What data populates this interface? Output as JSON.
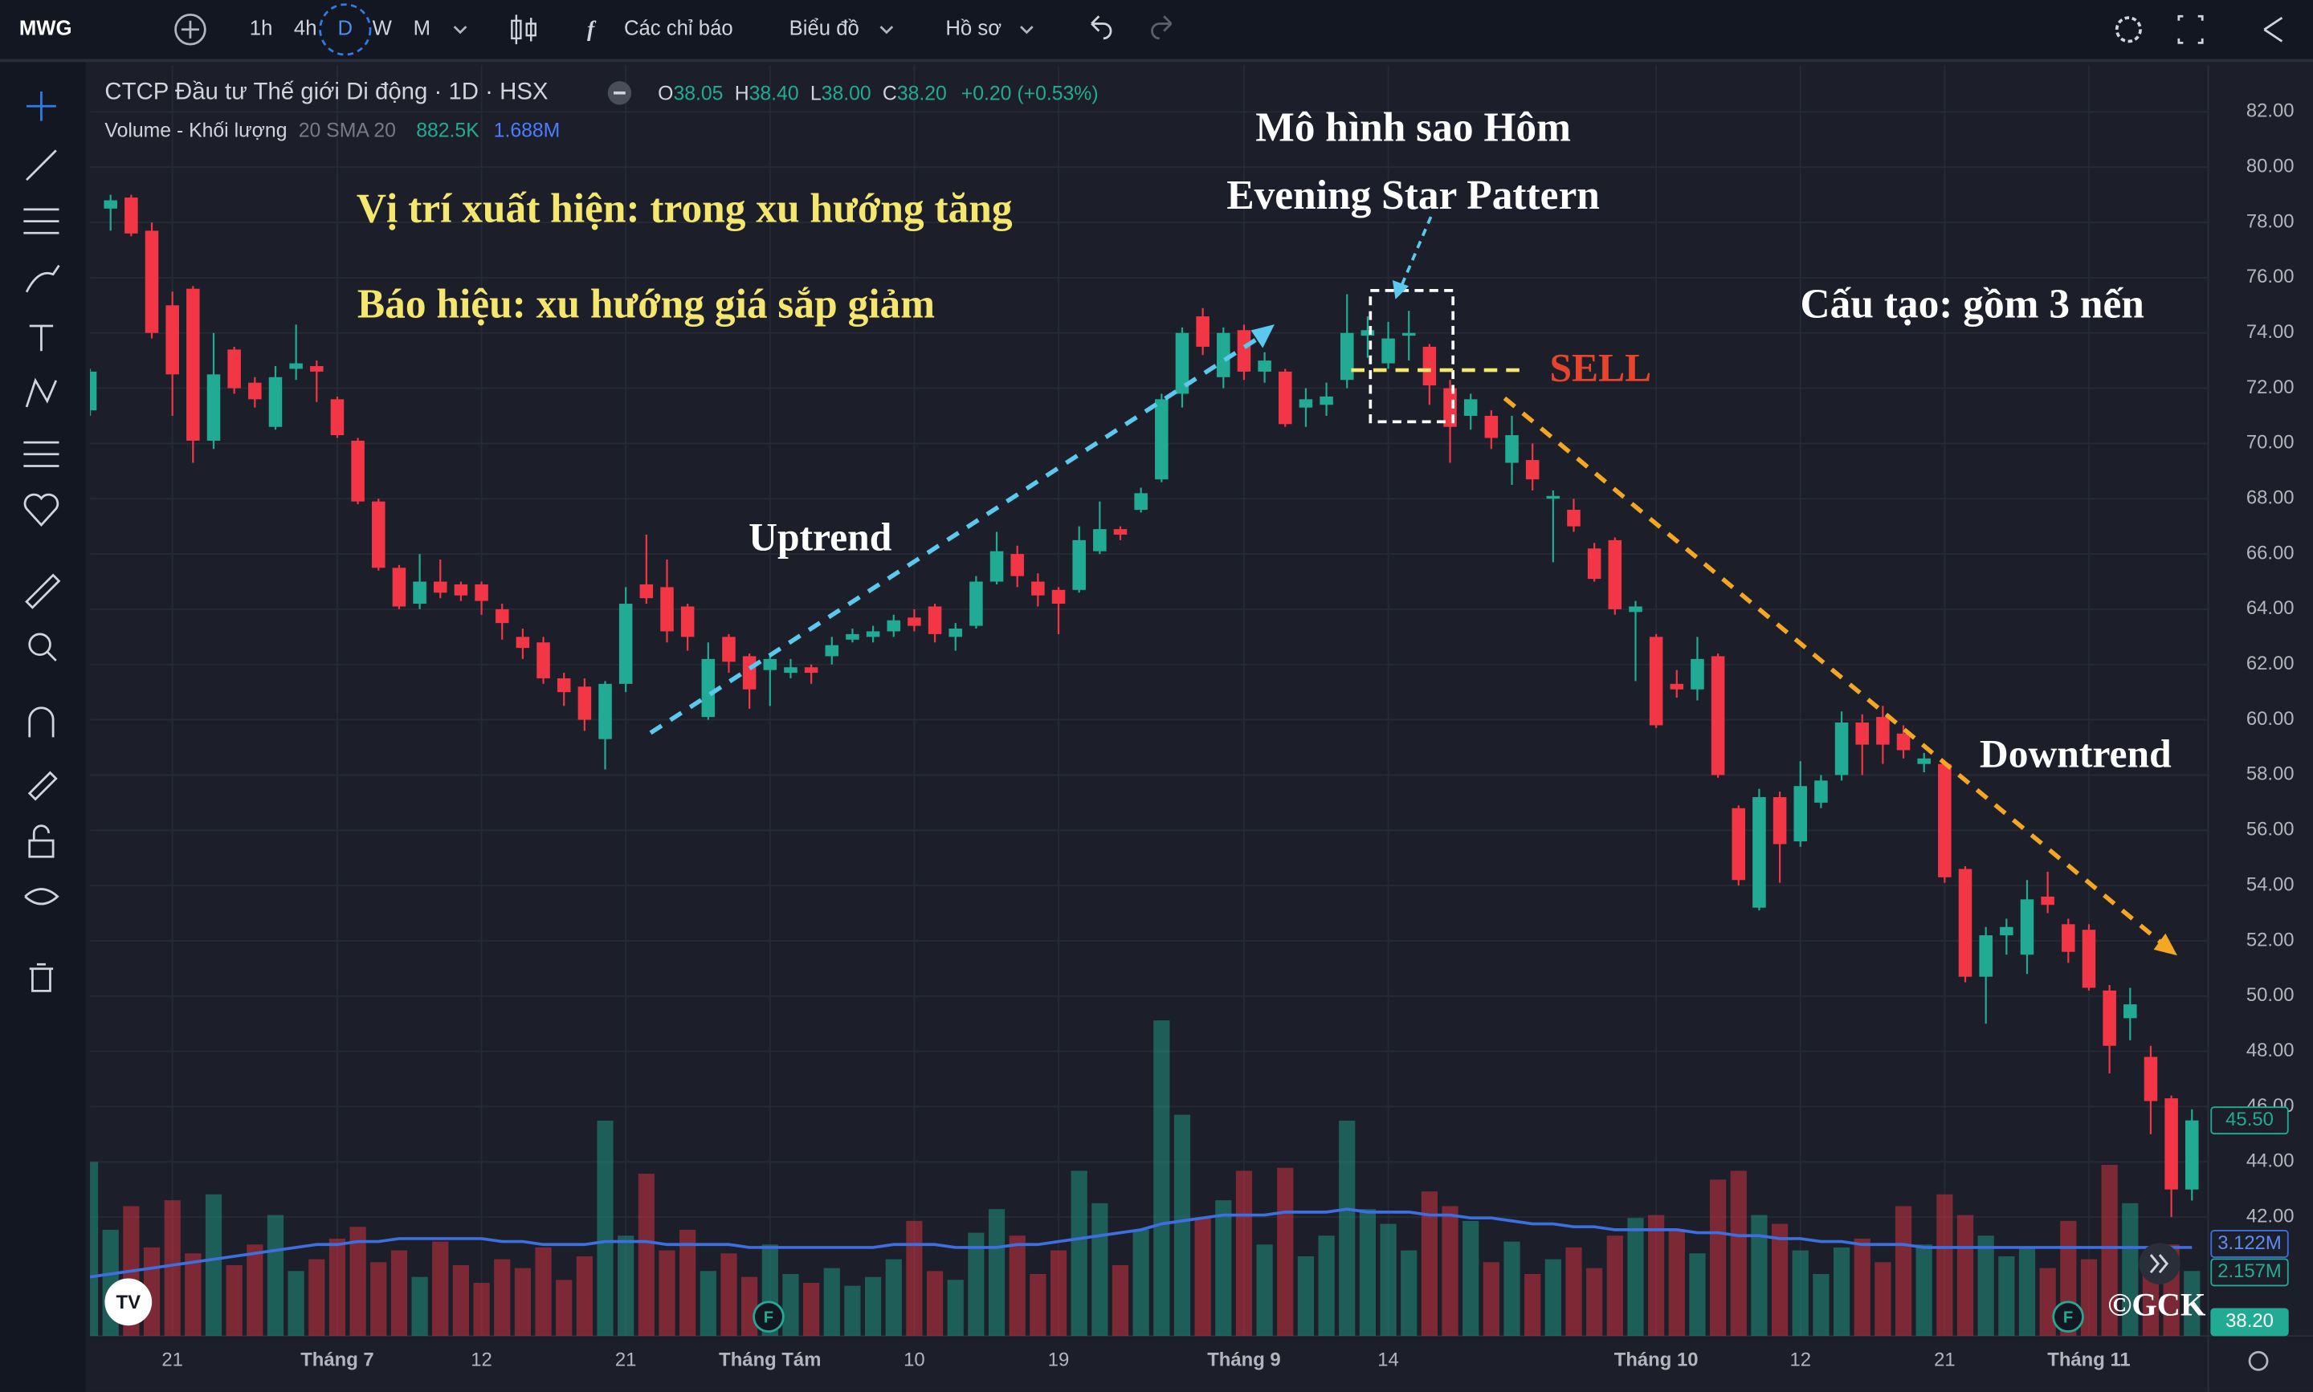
{
  "toolbar": {
    "symbol": "MWG",
    "intervals": [
      "1h",
      "4h",
      "D",
      "W",
      "M"
    ],
    "indicators": "Các chỉ báo",
    "chart": "Biểu đồ",
    "profile": "Hồ sơ"
  },
  "chart_data": {
    "type": "candlestick",
    "title": "CTCP Đầu tư Thế giới Di động · 1D · HSX",
    "legend": {
      "o_label": "O",
      "o": "38.05",
      "h_label": "H",
      "h": "38.40",
      "l_label": "L",
      "l": "38.00",
      "c_label": "C",
      "c": "38.20",
      "change": "+0.20 (+0.53%)"
    },
    "volume_legend": {
      "name": "Volume - Khối lượng",
      "sma": "20 SMA 20",
      "volume": "882.5K",
      "sma_value": "1.688M"
    },
    "up_color": "#22ab94",
    "down_color": "#f23645",
    "sma_color": "#3d6fe0",
    "grid": true,
    "categories": [
      null,
      null,
      null,
      null,
      "21",
      null,
      null,
      null,
      null,
      null,
      null,
      null,
      "Tháng 7",
      null,
      null,
      null,
      null,
      null,
      null,
      "12",
      null,
      null,
      null,
      null,
      null,
      null,
      "21",
      null,
      null,
      null,
      null,
      null,
      null,
      "Tháng Tám",
      null,
      null,
      null,
      null,
      null,
      null,
      "10",
      null,
      null,
      null,
      null,
      null,
      null,
      "19",
      null,
      null,
      null,
      null,
      null,
      null,
      null,
      null,
      "Tháng 9",
      null,
      null,
      null,
      null,
      null,
      null,
      "14",
      null,
      null,
      null,
      null,
      null,
      null,
      null,
      null,
      null,
      null,
      null,
      null,
      "Tháng 10",
      null,
      null,
      null,
      null,
      null,
      null,
      "12",
      null,
      null,
      null,
      null,
      null,
      null,
      "21",
      null,
      null,
      null,
      null,
      null,
      null,
      "Tháng 11",
      null,
      null,
      null,
      null,
      null
    ],
    "open": [
      71.2,
      78.5,
      78.9,
      77.7,
      75.0,
      75.6,
      70.1,
      73.4,
      72.2,
      70.6,
      72.7,
      72.8,
      71.6,
      70.1,
      67.9,
      65.5,
      64.2,
      65.0,
      64.9,
      64.9,
      64.0,
      63.0,
      62.8,
      61.5,
      61.2,
      59.3,
      61.3,
      64.9,
      64.8,
      64.1,
      60.1,
      63.0,
      62.3,
      61.8,
      61.7,
      61.9,
      62.3,
      62.9,
      63.0,
      63.2,
      63.7,
      64.1,
      63.0,
      63.4,
      65.0,
      66.0,
      65.0,
      64.7,
      64.7,
      66.1,
      66.9,
      67.6,
      68.7,
      71.8,
      74.6,
      72.4,
      74.1,
      72.6,
      72.6,
      71.3,
      71.4,
      72.3,
      73.9,
      72.9,
      73.9,
      73.5,
      72.0,
      71.0,
      71.0,
      69.3,
      69.4,
      68.0,
      67.6,
      66.2,
      66.5,
      63.9,
      63.0,
      61.3,
      61.1,
      62.3,
      56.8,
      53.2,
      57.2,
      55.6,
      57.0,
      58.0,
      59.9,
      60.1,
      59.5,
      58.4,
      58.4,
      54.6,
      50.7,
      52.2,
      51.5,
      53.6,
      52.6,
      52.4,
      50.2,
      49.2,
      47.8,
      46.3,
      43.0
    ],
    "high": [
      72.7,
      79.0,
      79.0,
      78.0,
      75.5,
      75.7,
      74.0,
      73.5,
      72.4,
      72.8,
      74.3,
      73.0,
      71.7,
      70.2,
      68.0,
      65.6,
      66.0,
      65.8,
      65.0,
      65.0,
      64.2,
      63.3,
      63.0,
      61.7,
      61.5,
      61.4,
      64.8,
      66.7,
      65.8,
      64.2,
      62.8,
      63.1,
      62.4,
      62.4,
      62.2,
      62.0,
      63.0,
      63.3,
      63.4,
      63.8,
      64.0,
      64.2,
      63.5,
      65.2,
      66.8,
      66.3,
      65.3,
      64.8,
      67.0,
      67.9,
      67.0,
      68.4,
      71.8,
      74.2,
      74.9,
      74.2,
      74.3,
      73.3,
      72.7,
      72.0,
      72.2,
      75.4,
      74.6,
      74.4,
      74.8,
      73.6,
      72.3,
      71.8,
      71.2,
      71.0,
      70.0,
      68.3,
      68.0,
      66.4,
      66.6,
      64.3,
      63.1,
      61.8,
      63.0,
      62.4,
      56.9,
      57.5,
      57.4,
      58.5,
      58.0,
      60.3,
      60.2,
      60.5,
      59.8,
      58.8,
      58.5,
      54.7,
      52.5,
      52.8,
      54.2,
      54.5,
      52.8,
      52.6,
      50.4,
      50.3,
      48.2,
      46.4,
      45.9
    ],
    "low": [
      71.0,
      77.7,
      77.5,
      73.8,
      71.0,
      69.3,
      69.8,
      71.8,
      71.3,
      70.5,
      72.3,
      71.5,
      70.2,
      67.8,
      65.4,
      64.0,
      64.0,
      64.4,
      64.3,
      63.8,
      62.9,
      62.2,
      61.3,
      60.5,
      59.6,
      58.2,
      61.0,
      64.2,
      62.8,
      62.5,
      60.0,
      61.7,
      60.4,
      60.5,
      61.5,
      61.3,
      62.0,
      62.8,
      62.8,
      63.0,
      63.2,
      62.8,
      62.5,
      63.3,
      64.9,
      64.8,
      64.1,
      63.1,
      64.6,
      66.0,
      66.5,
      67.5,
      68.6,
      71.3,
      73.2,
      72.0,
      72.3,
      72.2,
      70.6,
      70.6,
      71.0,
      72.0,
      73.1,
      72.7,
      73.0,
      71.4,
      69.3,
      70.5,
      69.8,
      68.5,
      68.3,
      65.7,
      66.8,
      65.0,
      63.8,
      61.4,
      59.7,
      60.8,
      60.7,
      57.9,
      54.0,
      53.1,
      54.1,
      55.4,
      56.8,
      57.8,
      58.0,
      58.4,
      58.6,
      58.1,
      54.1,
      50.5,
      49.0,
      51.5,
      50.8,
      53.0,
      51.2,
      50.2,
      47.2,
      48.4,
      45.0,
      42.0,
      42.6
    ],
    "close": [
      72.6,
      78.8,
      77.6,
      74.0,
      72.5,
      70.1,
      72.5,
      72.0,
      71.6,
      72.4,
      72.9,
      72.6,
      70.3,
      67.9,
      65.5,
      64.1,
      65.0,
      64.6,
      64.5,
      64.3,
      63.5,
      62.6,
      61.5,
      61.0,
      60.0,
      61.3,
      64.2,
      64.4,
      63.2,
      63.0,
      62.2,
      62.1,
      61.1,
      62.2,
      61.9,
      61.7,
      62.7,
      63.1,
      63.2,
      63.6,
      63.4,
      63.1,
      63.3,
      65.0,
      66.1,
      65.2,
      64.5,
      64.2,
      66.5,
      66.9,
      66.7,
      68.2,
      71.6,
      74.0,
      73.5,
      74.0,
      72.6,
      73.0,
      70.7,
      71.6,
      71.7,
      74.0,
      74.1,
      73.8,
      74.0,
      72.1,
      70.6,
      71.6,
      70.2,
      70.3,
      68.7,
      68.1,
      67.0,
      65.1,
      64.0,
      64.1,
      59.8,
      61.1,
      62.2,
      58.0,
      54.2,
      57.2,
      55.5,
      57.6,
      57.8,
      59.9,
      59.1,
      59.1,
      58.9,
      58.6,
      54.3,
      50.7,
      52.2,
      52.5,
      53.5,
      53.3,
      51.6,
      50.3,
      48.2,
      49.7,
      46.2,
      43.0,
      45.5
    ],
    "volume": [
      5.9,
      3.6,
      4.4,
      3.0,
      4.6,
      2.8,
      4.8,
      2.4,
      3.1,
      4.1,
      2.2,
      2.6,
      3.3,
      3.7,
      2.5,
      2.9,
      2.0,
      3.2,
      2.4,
      1.8,
      2.6,
      2.3,
      3.0,
      1.9,
      2.7,
      7.3,
      3.4,
      5.5,
      2.9,
      3.6,
      2.2,
      2.8,
      2.0,
      3.1,
      2.1,
      1.8,
      2.3,
      1.7,
      2.0,
      2.6,
      3.9,
      2.2,
      1.9,
      3.5,
      4.3,
      3.4,
      2.1,
      2.9,
      5.6,
      4.5,
      2.4,
      3.6,
      10.7,
      7.5,
      4.0,
      4.6,
      5.6,
      3.1,
      5.7,
      2.7,
      3.4,
      7.3,
      4.3,
      3.8,
      2.9,
      4.9,
      4.4,
      3.9,
      2.5,
      3.2,
      2.1,
      2.6,
      3.0,
      2.3,
      3.4,
      4.0,
      4.1,
      3.6,
      2.8,
      5.3,
      5.6,
      4.1,
      3.8,
      2.9,
      2.1,
      3.0,
      3.3,
      2.5,
      4.4,
      3.1,
      4.8,
      4.1,
      3.4,
      2.7,
      3.0,
      2.3,
      3.9,
      2.6,
      5.8,
      4.5,
      2.4,
      3.1,
      2.2
    ],
    "volume_sma": [
      2.0,
      2.1,
      2.2,
      2.3,
      2.4,
      2.5,
      2.6,
      2.7,
      2.8,
      2.9,
      3.0,
      3.1,
      3.1,
      3.2,
      3.2,
      3.3,
      3.3,
      3.3,
      3.3,
      3.3,
      3.2,
      3.2,
      3.1,
      3.1,
      3.1,
      3.2,
      3.2,
      3.2,
      3.1,
      3.1,
      3.1,
      3.1,
      3.0,
      3.0,
      3.0,
      3.0,
      3.0,
      3.0,
      3.0,
      3.1,
      3.1,
      3.1,
      3.0,
      3.0,
      3.0,
      3.1,
      3.1,
      3.2,
      3.3,
      3.4,
      3.5,
      3.6,
      3.8,
      3.9,
      4.0,
      4.1,
      4.1,
      4.1,
      4.2,
      4.2,
      4.2,
      4.3,
      4.2,
      4.2,
      4.2,
      4.1,
      4.1,
      4.0,
      4.0,
      3.9,
      3.8,
      3.8,
      3.7,
      3.7,
      3.6,
      3.6,
      3.6,
      3.6,
      3.5,
      3.5,
      3.4,
      3.4,
      3.3,
      3.3,
      3.2,
      3.2,
      3.1,
      3.1,
      3.1,
      3.0,
      3.0,
      3.0,
      3.0,
      3.0,
      3.0,
      3.0,
      3.0,
      3.0,
      3.0,
      3.0,
      3.0,
      3.0,
      3.0
    ],
    "ylim": [
      37.7,
      83.7
    ],
    "vlim": [
      0,
      43.1
    ],
    "yticks": [
      {
        "value": 42,
        "label": "42.00"
      },
      {
        "value": 44,
        "label": "44.00"
      },
      {
        "value": 46,
        "label": "46.00"
      },
      {
        "value": 48,
        "label": "48.00"
      },
      {
        "value": 50,
        "label": "50.00"
      },
      {
        "value": 52,
        "label": "52.00"
      },
      {
        "value": 54,
        "label": "54.00"
      },
      {
        "value": 56,
        "label": "56.00"
      },
      {
        "value": 58,
        "label": "58.00"
      },
      {
        "value": 60,
        "label": "60.00"
      },
      {
        "value": 62,
        "label": "62.00"
      },
      {
        "value": 64,
        "label": "64.00"
      },
      {
        "value": 66,
        "label": "66.00"
      },
      {
        "value": 68,
        "label": "68.00"
      },
      {
        "value": 70,
        "label": "70.00"
      },
      {
        "value": 72,
        "label": "72.00"
      },
      {
        "value": 74,
        "label": "74.00"
      },
      {
        "value": 76,
        "label": "76.00"
      },
      {
        "value": 78,
        "label": "78.00"
      },
      {
        "value": 80,
        "label": "80.00"
      },
      {
        "value": 82,
        "label": "82.00"
      }
    ],
    "price_labels": [
      {
        "value": 45.5,
        "label": "45.50"
      },
      {
        "value": 38.2,
        "label": "38.20"
      }
    ],
    "volume_labels": [
      {
        "value": 3.122,
        "label": "3.122M"
      },
      {
        "value": 2.157,
        "label": "2.157M"
      }
    ],
    "events": [
      "F",
      "F"
    ],
    "annotations": [
      "Mô hình sao Hôm",
      "Evening Star Pattern",
      "Vị trí xuất hiện: trong xu hướng tăng",
      "Báo hiệu: xu hướng giá sắp giảm",
      "Cấu tạo: gồm 3 nến",
      "SELL",
      "Uptrend",
      "Downtrend",
      "©GCK"
    ]
  }
}
